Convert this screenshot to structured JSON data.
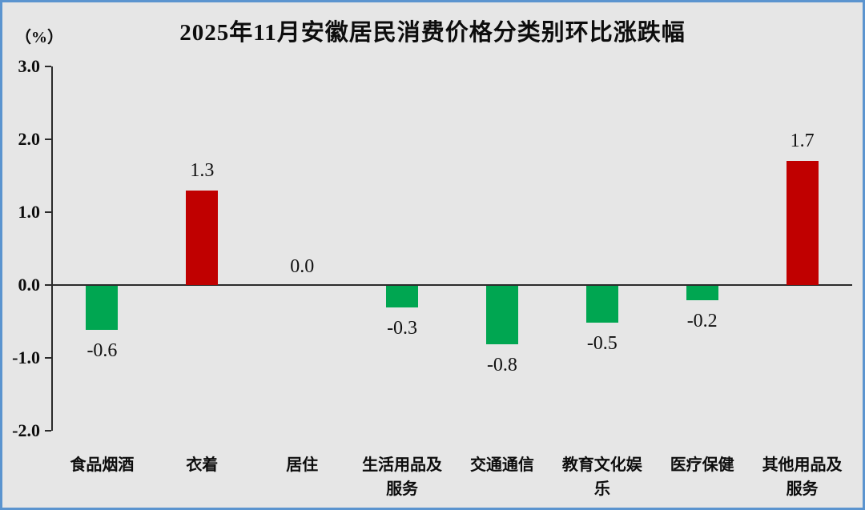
{
  "frame": {
    "background_color": "#e6e6e6",
    "border_color": "#5b94cf"
  },
  "header": {
    "title": "2025年11月安徽居民消费价格分类别环比涨跌幅",
    "unit_label": "（%）"
  },
  "chart_data": {
    "type": "bar",
    "title": "2025年11月安徽居民消费价格分类别环比涨跌幅",
    "unit": "%",
    "categories": [
      "食品烟酒",
      "衣着",
      "居住",
      "生活用品及服务",
      "交通通信",
      "教育文化娱乐",
      "医疗保健",
      "其他用品及服务"
    ],
    "values": [
      -0.6,
      1.3,
      0.0,
      -0.3,
      -0.8,
      -0.5,
      -0.2,
      1.7
    ],
    "data_labels": [
      "-0.6",
      "1.3",
      "0.0",
      "-0.3",
      "-0.8",
      "-0.5",
      "-0.2",
      "1.7"
    ],
    "ylim": [
      -2.0,
      3.0
    ],
    "ytick_labels": [
      "3.0",
      "2.0",
      "1.0",
      "0.0",
      "-1.0",
      "-2.0"
    ],
    "ytick_values": [
      3.0,
      2.0,
      1.0,
      0.0,
      -1.0,
      -2.0
    ],
    "grid": false,
    "legend": "none",
    "positive_color": "#c00000",
    "negative_color": "#00a651",
    "axis_color": "#2b2b2b"
  }
}
